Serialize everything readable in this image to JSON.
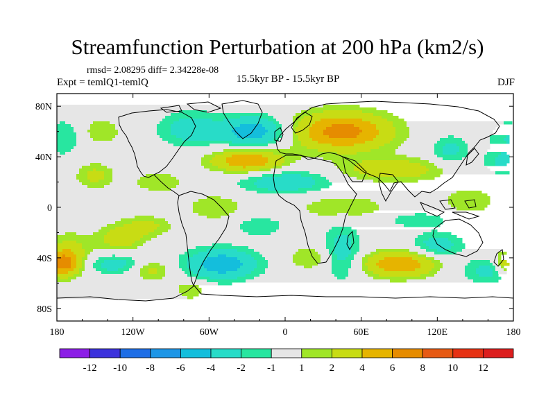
{
  "header": {
    "title": "Streamfunction Perturbation at 200 hPa (km2/s)",
    "stats": "rmsd= 2.08295 diff= 2.34228e-08",
    "left": "Expt = temlQ1-temlQ",
    "center": "15.5kyr BP - 15.5kyr BP",
    "right": "DJF"
  },
  "chart_data": {
    "type": "heatmap",
    "title": "Streamfunction Perturbation at 200 hPa (km2/s)",
    "xlabel": "",
    "ylabel": "",
    "xlim": [
      -180,
      180
    ],
    "ylim": [
      -90,
      90
    ],
    "x_ticks": [
      {
        "value": -180,
        "label": "180"
      },
      {
        "value": -120,
        "label": "120W"
      },
      {
        "value": -60,
        "label": "60W"
      },
      {
        "value": 0,
        "label": "0"
      },
      {
        "value": 60,
        "label": "60E"
      },
      {
        "value": 120,
        "label": "120E"
      },
      {
        "value": 180,
        "label": "180"
      }
    ],
    "y_ticks": [
      {
        "value": 80,
        "label": "80N"
      },
      {
        "value": 40,
        "label": "40N"
      },
      {
        "value": 0,
        "label": "0"
      },
      {
        "value": -40,
        "label": "40S"
      },
      {
        "value": -80,
        "label": "80S"
      }
    ],
    "colorbar": {
      "labels": [
        "-12",
        "-10",
        "-8",
        "-6",
        "-4",
        "-2",
        "-1",
        "1",
        "2",
        "4",
        "6",
        "8",
        "10",
        "12"
      ],
      "levels": [
        -12,
        -10,
        -8,
        -6,
        -4,
        -2,
        -1,
        1,
        2,
        4,
        6,
        8,
        10,
        12
      ],
      "colors": [
        "#8c1ee6",
        "#3c32dc",
        "#1e6ee6",
        "#1e96e6",
        "#14bedc",
        "#28dcc8",
        "#28e6a0",
        "#e6e6e6",
        "#a0e628",
        "#c8dc14",
        "#e6b400",
        "#e68c00",
        "#e65a14",
        "#e63214",
        "#dc1e1e"
      ]
    },
    "anomalies": [
      {
        "lon": -75,
        "lat": 62,
        "value": -3.0,
        "slon": 25,
        "slat": 14
      },
      {
        "lon": -25,
        "lat": 60,
        "value": -5.5,
        "slon": 25,
        "slat": 12
      },
      {
        "lon": 45,
        "lat": 60,
        "value": 7.0,
        "slon": 38,
        "slat": 15
      },
      {
        "lon": -30,
        "lat": 37,
        "value": 6.0,
        "slon": 28,
        "slat": 9
      },
      {
        "lon": 0,
        "lat": 20,
        "value": -3.5,
        "slon": 35,
        "slat": 9
      },
      {
        "lon": 85,
        "lat": 30,
        "value": 3.5,
        "slon": 40,
        "slat": 9
      },
      {
        "lon": -150,
        "lat": 25,
        "value": 2.5,
        "slon": 15,
        "slat": 10
      },
      {
        "lon": -175,
        "lat": 55,
        "value": -2.0,
        "slon": 15,
        "slat": 15
      },
      {
        "lon": 175,
        "lat": 55,
        "value": -2.0,
        "slon": 15,
        "slat": 15
      },
      {
        "lon": -145,
        "lat": 60,
        "value": 2.0,
        "slon": 15,
        "slat": 10
      },
      {
        "lon": -100,
        "lat": 20,
        "value": 2.0,
        "slon": 20,
        "slat": 8
      },
      {
        "lon": -55,
        "lat": 0,
        "value": 2.0,
        "slon": 22,
        "slat": 10
      },
      {
        "lon": 45,
        "lat": 0,
        "value": 2.0,
        "slon": 35,
        "slat": 10
      },
      {
        "lon": 145,
        "lat": 5,
        "value": 2.0,
        "slon": 20,
        "slat": 10
      },
      {
        "lon": -130,
        "lat": -25,
        "value": 3.0,
        "slon": 18,
        "slat": 10
      },
      {
        "lon": -110,
        "lat": -15,
        "value": 2.5,
        "slon": 20,
        "slat": 8
      },
      {
        "lon": -135,
        "lat": -45,
        "value": -3.0,
        "slon": 20,
        "slat": 8
      },
      {
        "lon": -170,
        "lat": -35,
        "value": 2.5,
        "slon": 18,
        "slat": 15
      },
      {
        "lon": -175,
        "lat": -45,
        "value": 6.0,
        "slon": 12,
        "slat": 10
      },
      {
        "lon": -105,
        "lat": -50,
        "value": 2.5,
        "slon": 15,
        "slat": 8
      },
      {
        "lon": -50,
        "lat": -45,
        "value": -5.5,
        "slon": 28,
        "slat": 12
      },
      {
        "lon": -75,
        "lat": -65,
        "value": 2.0,
        "slon": 12,
        "slat": 8
      },
      {
        "lon": 20,
        "lat": -40,
        "value": 2.0,
        "slon": 18,
        "slat": 10
      },
      {
        "lon": 45,
        "lat": -35,
        "value": -3.0,
        "slon": 15,
        "slat": 22
      },
      {
        "lon": 90,
        "lat": -45,
        "value": 6.0,
        "slon": 28,
        "slat": 10
      },
      {
        "lon": 120,
        "lat": -30,
        "value": -3.0,
        "slon": 20,
        "slat": 10
      },
      {
        "lon": 165,
        "lat": -50,
        "value": -3.0,
        "slon": 25,
        "slat": 10
      },
      {
        "lon": 178,
        "lat": -45,
        "value": 6.0,
        "slon": 12,
        "slat": 10
      },
      {
        "lon": 105,
        "lat": -10,
        "value": -2.0,
        "slon": 25,
        "slat": 6
      },
      {
        "lon": 130,
        "lat": 45,
        "value": -2.5,
        "slon": 15,
        "slat": 12
      },
      {
        "lon": 170,
        "lat": 35,
        "value": -2.0,
        "slon": 15,
        "slat": 10
      },
      {
        "lon": -20,
        "lat": -15,
        "value": -2.0,
        "slon": 20,
        "slat": 8
      }
    ]
  }
}
